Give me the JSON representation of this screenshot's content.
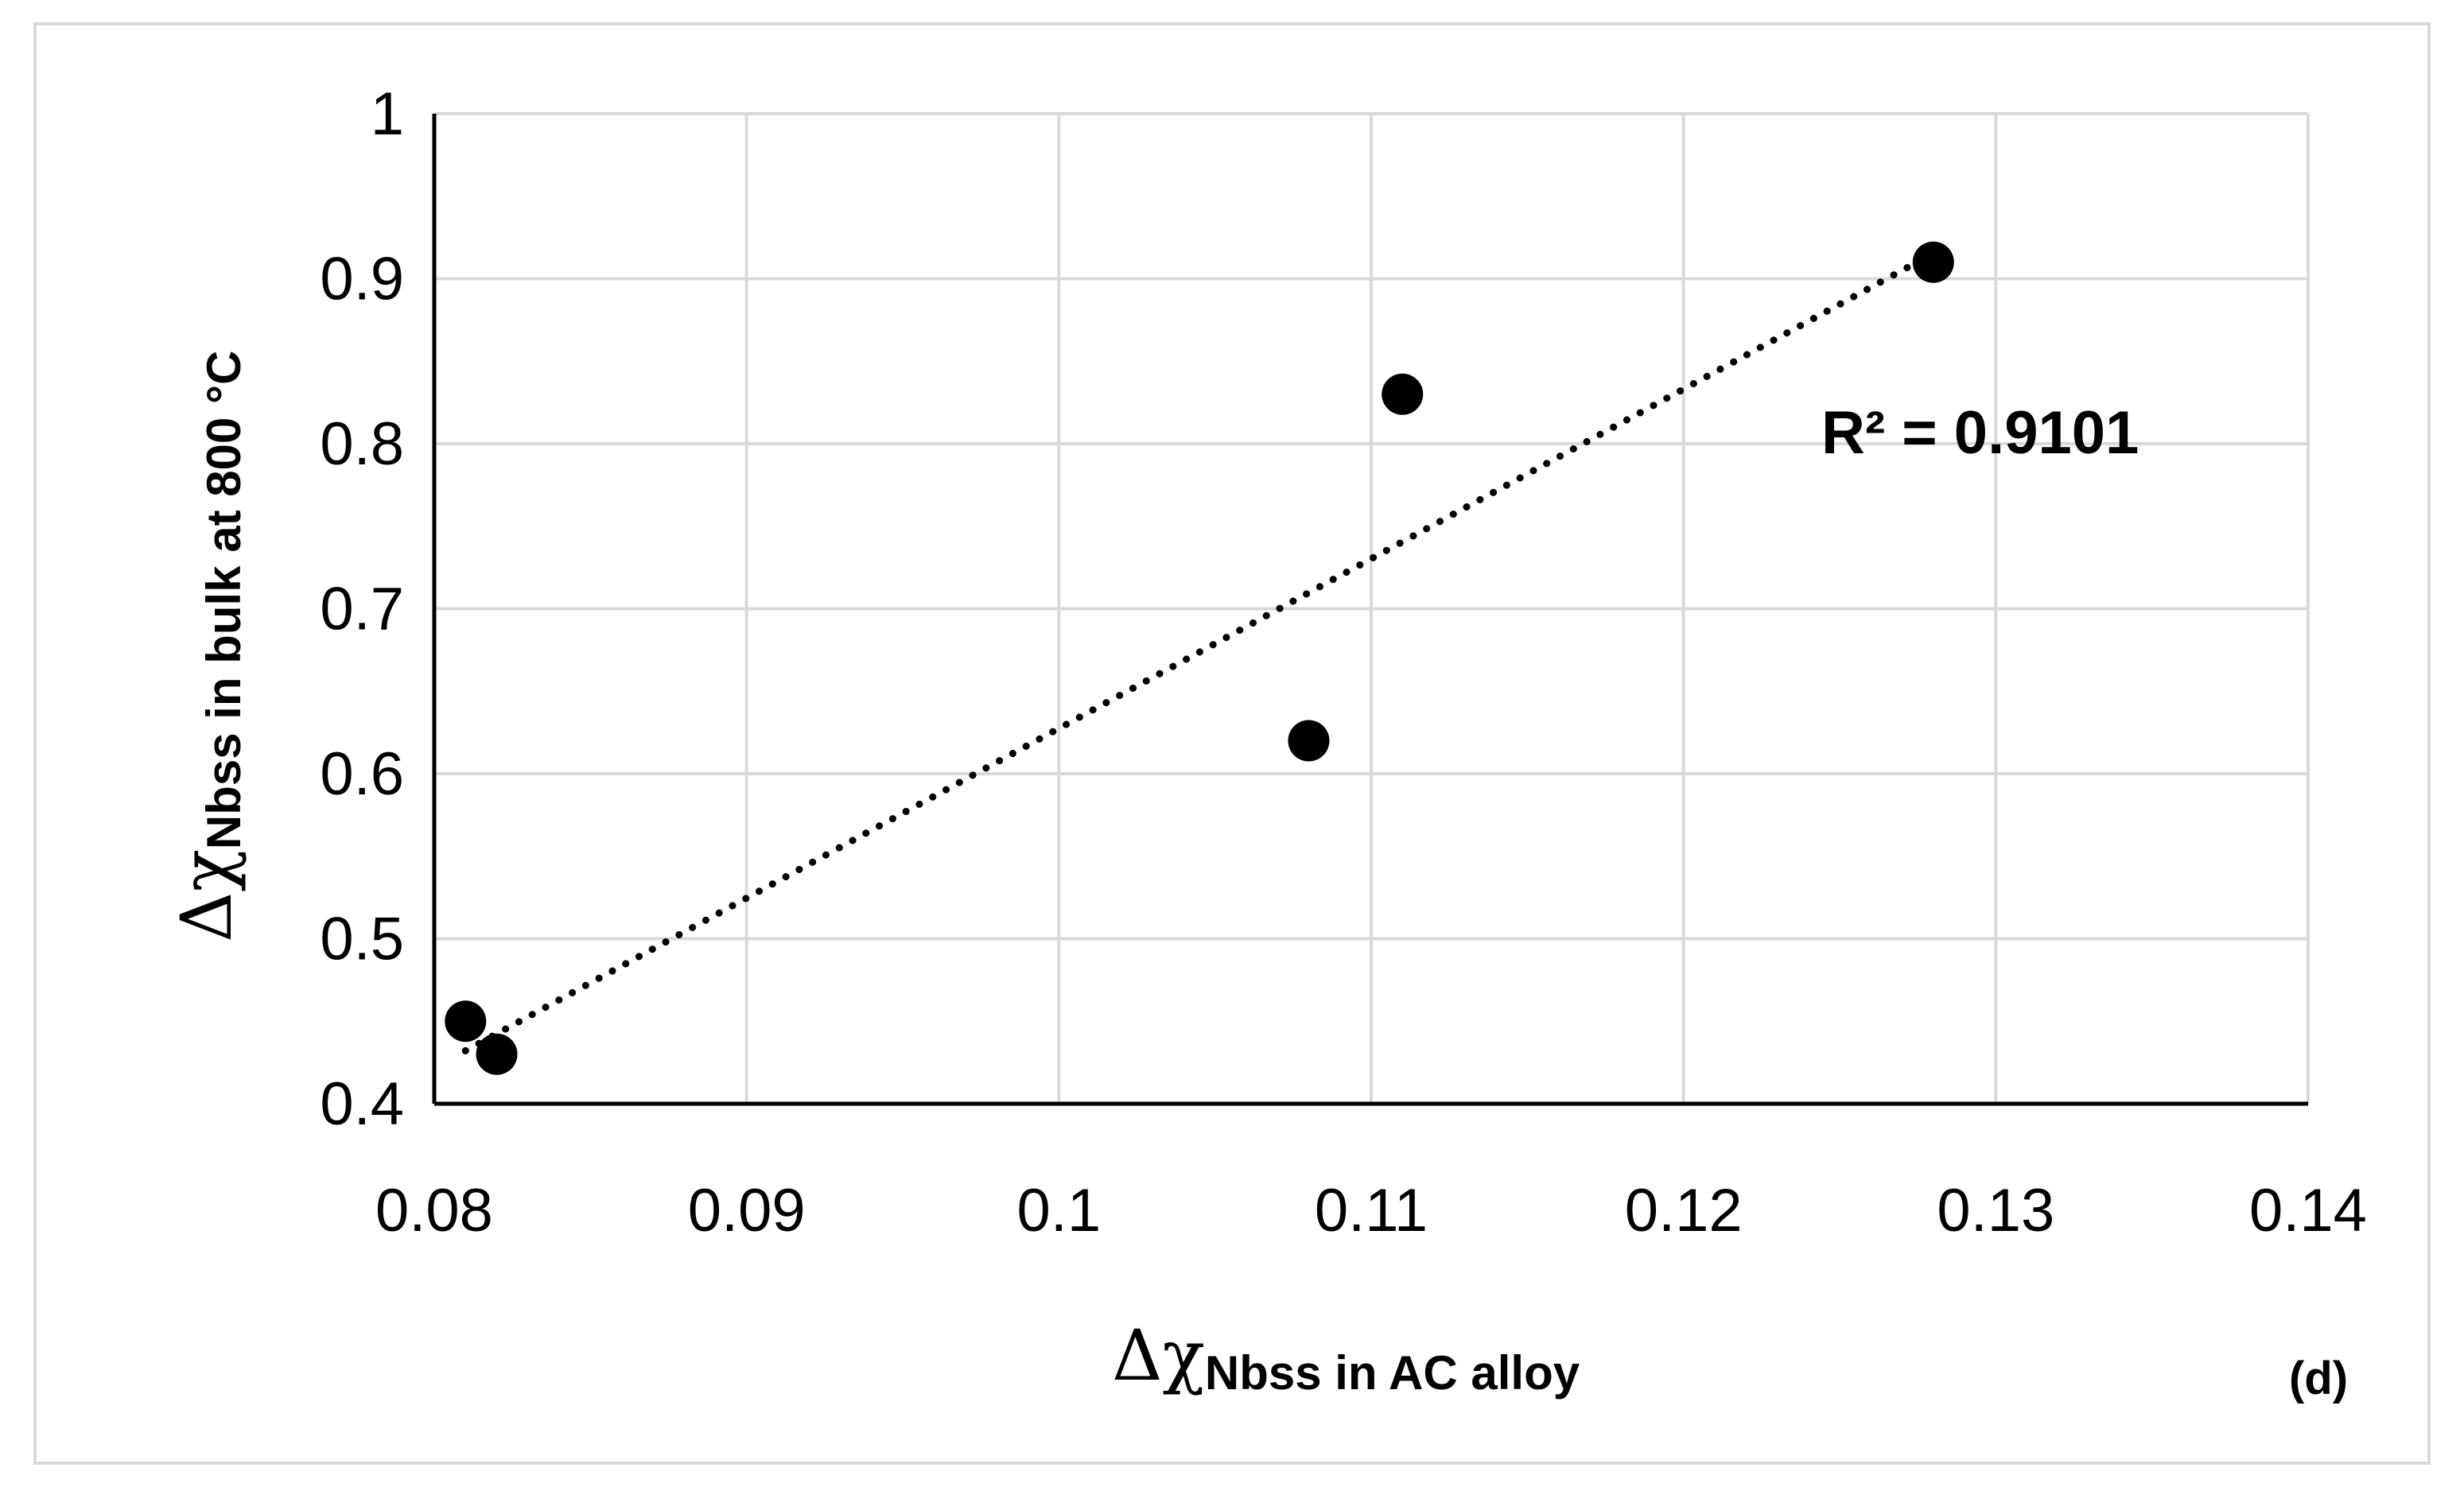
{
  "chart_data": {
    "type": "scatter",
    "title": "",
    "x": [
      0.081,
      0.082,
      0.108,
      0.111,
      0.128
    ],
    "y": [
      0.45,
      0.43,
      0.62,
      0.83,
      0.91
    ],
    "xlim": [
      0.08,
      0.14
    ],
    "ylim": [
      0.4,
      1.0
    ],
    "x_ticks": [
      "0.08",
      "0.09",
      "0.1",
      "0.11",
      "0.12",
      "0.13",
      "0.14"
    ],
    "y_ticks": [
      "0.4",
      "0.5",
      "0.6",
      "0.7",
      "0.8",
      "0.9",
      "1"
    ],
    "xlabel_main": "Δχ",
    "xlabel_sub": "Nbss in AC alloy",
    "ylabel_main": "Δχ",
    "ylabel_sub": "Nbss in bulk at 800 °C",
    "trendline": {
      "type": "linear",
      "style": "dotted",
      "x_range": [
        0.081,
        0.128
      ],
      "r2_label": "R² = 0.9101"
    },
    "panel_label": "(d)",
    "grid": true,
    "legend": "none",
    "colors": {
      "marker": "#000000",
      "trendline": "#000000",
      "grid": "#d9d9d9",
      "axis": "#000000",
      "frame": "#d9d9d9"
    }
  }
}
